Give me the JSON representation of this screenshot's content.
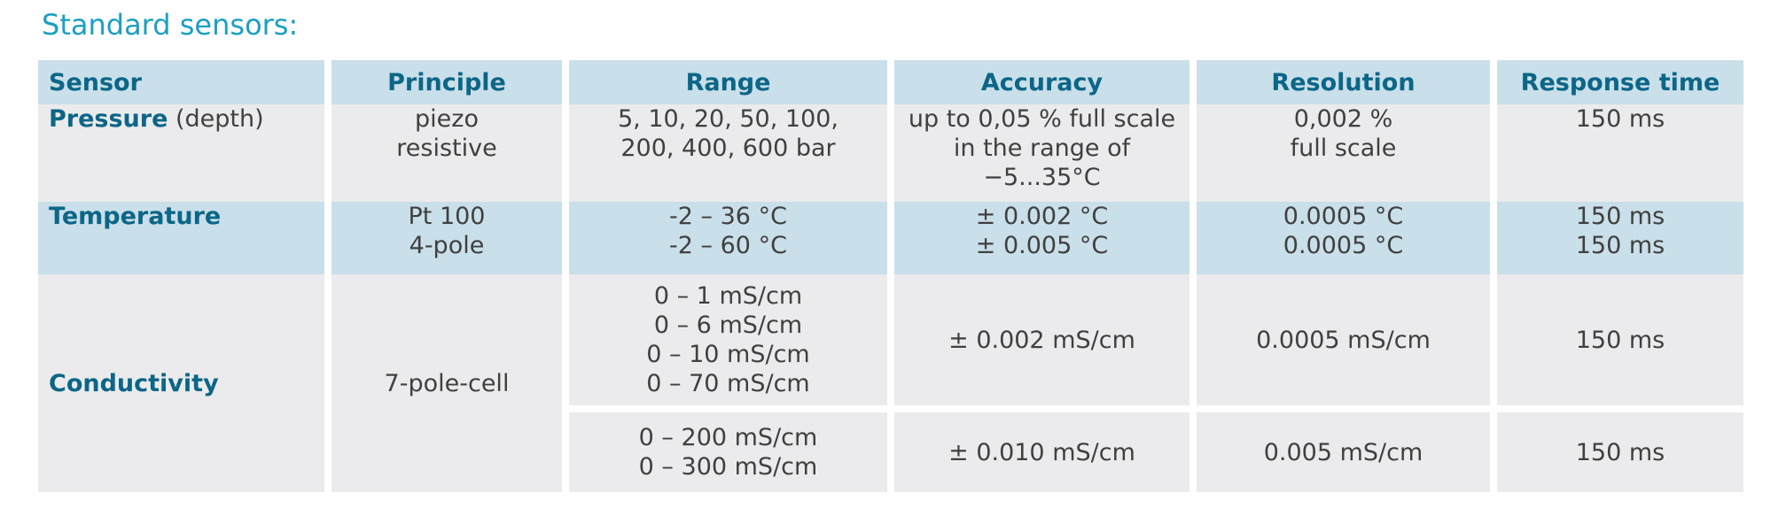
{
  "heading": "Standard sensors:",
  "table": {
    "headers": [
      "Sensor",
      "Principle",
      "Range",
      "Accuracy",
      "Resolution",
      "Response time"
    ],
    "pressure": {
      "sensor_strong": "Pressure",
      "sensor_suffix": " (depth)",
      "principle": [
        "piezo",
        "resistive"
      ],
      "range": [
        "5, 10, 20, 50, 100,",
        "200, 400, 600 bar"
      ],
      "accuracy": [
        "up to 0,05 % full scale",
        "in the range of",
        "−5...35°C"
      ],
      "resolution": [
        "0,002 %",
        "full scale"
      ],
      "response": "150 ms"
    },
    "temperature": {
      "sensor": "Temperature",
      "principle": [
        "Pt 100",
        "4-pole"
      ],
      "range": [
        "-2 – 36 °C",
        "-2 – 60 °C"
      ],
      "accuracy": [
        "± 0.002 °C",
        "± 0.005 °C"
      ],
      "resolution": [
        "0.0005 °C",
        "0.0005 °C"
      ],
      "response": [
        "150 ms",
        "150 ms"
      ]
    },
    "conductivity": {
      "sensor": "Conductivity",
      "principle": "7-pole-cell",
      "sub1": {
        "range": [
          "0 – 1 mS/cm",
          "0 – 6 mS/cm",
          "0 – 10 mS/cm",
          "0 – 70 mS/cm"
        ],
        "accuracy": "± 0.002 mS/cm",
        "resolution": "0.0005 mS/cm",
        "response": "150 ms"
      },
      "sub2": {
        "range": [
          "0 – 200 mS/cm",
          "0 – 300 mS/cm"
        ],
        "accuracy": "± 0.010 mS/cm",
        "resolution": "0.005 mS/cm",
        "response": "150 ms"
      }
    }
  },
  "colors": {
    "title": "#1b9fc3",
    "header_bg": "#c9dfe9",
    "header_text": "#0c6687",
    "row_grey": "#ebebed"
  }
}
